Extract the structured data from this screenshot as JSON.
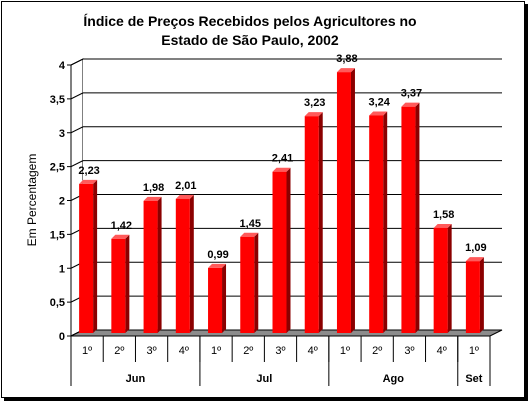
{
  "chart_data": {
    "type": "bar",
    "title_line1": "Índice de Preços Recebidos pelos Agricultores no",
    "title_line2": "Estado de São Paulo, 2002",
    "ylabel": "Em Percentagem",
    "ylim": [
      0,
      4
    ],
    "yticks": [
      "0",
      "0,5",
      "1",
      "1,5",
      "2",
      "2,5",
      "3",
      "3,5",
      "4"
    ],
    "grid": true,
    "categories": [
      "1º",
      "2º",
      "3º",
      "4º",
      "1º",
      "2º",
      "3º",
      "4º",
      "1º",
      "2º",
      "3º",
      "4º",
      "1º"
    ],
    "groups": [
      {
        "label": "Jun",
        "count": 4
      },
      {
        "label": "Jul",
        "count": 4
      },
      {
        "label": "Ago",
        "count": 4
      },
      {
        "label": "Set",
        "count": 1
      }
    ],
    "values": [
      2.23,
      1.42,
      1.98,
      2.01,
      0.99,
      1.45,
      2.41,
      3.23,
      3.88,
      3.24,
      3.37,
      1.58,
      1.09
    ],
    "value_labels": [
      "2,23",
      "1,42",
      "1,98",
      "2,01",
      "0,99",
      "1,45",
      "2,41",
      "3,23",
      "3,88",
      "3,24",
      "3,37",
      "1,58",
      "1,09"
    ],
    "colors": {
      "bar_front": "#ff0000",
      "bar_side": "#8b0000",
      "bar_top": "#ff5a5a",
      "floor": "#8c8c8c"
    }
  }
}
